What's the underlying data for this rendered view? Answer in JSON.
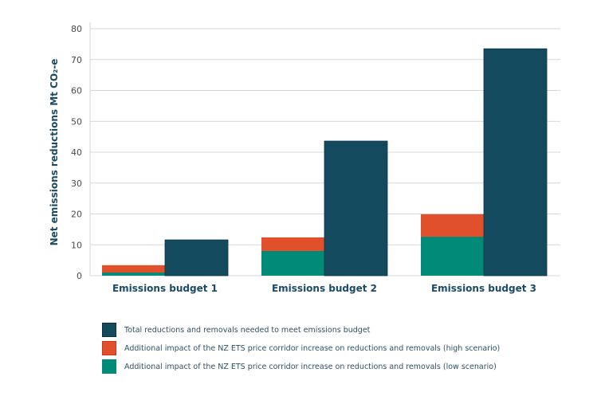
{
  "chart_data": {
    "type": "bar",
    "title": "",
    "xlabel": "",
    "ylabel": "Net emissions reductions Mt CO₂-e",
    "ylim": [
      0,
      80
    ],
    "yticks": [
      0,
      10,
      20,
      30,
      40,
      50,
      60,
      70,
      80
    ],
    "grid": true,
    "categories": [
      "Emissions budget 1",
      "Emissions budget 2",
      "Emissions budget 3"
    ],
    "series": [
      {
        "name": "Additional impact of the NZ ETS price corridor increase on reductions and removals (low scenario)",
        "color": "#008a78",
        "values": [
          1.0,
          8.0,
          12.6
        ],
        "stack": "impact"
      },
      {
        "name": "Additional impact of the NZ ETS price corridor increase on reductions and removals (high scenario)",
        "color": "#e0502b",
        "values": [
          3.4,
          12.4,
          19.9
        ],
        "stack": "impact",
        "note": "values are stack top (total high scenario)"
      },
      {
        "name": "Total reductions and removals needed to meet emissions budget",
        "color": "#134a5e",
        "values": [
          11.6,
          43.6,
          73.5
        ],
        "stack": "total"
      }
    ],
    "legend_position": "bottom",
    "legend": [
      {
        "label": "Total reductions and removals needed to meet emissions budget",
        "color": "#134a5e"
      },
      {
        "label": "Additional impact of the NZ ETS price corridor increase on reductions and removals (high scenario)",
        "color": "#e0502b"
      },
      {
        "label": "Additional impact of the NZ ETS price corridor increase on reductions and removals (low scenario)",
        "color": "#008a78"
      }
    ]
  }
}
